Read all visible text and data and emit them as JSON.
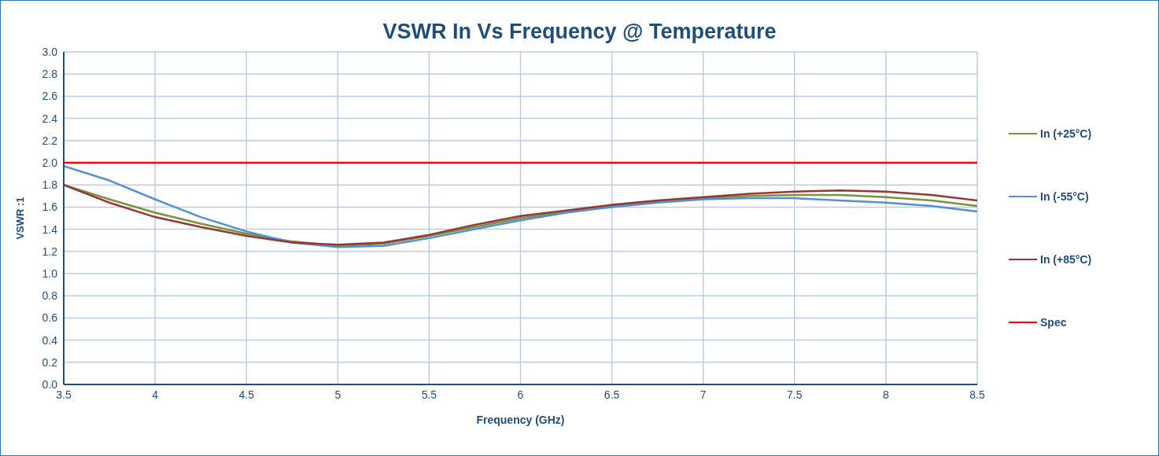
{
  "chart_data": {
    "type": "line",
    "title": "VSWR In Vs Frequency @ Temperature",
    "xlabel": "Frequency (GHz)",
    "ylabel": "VSWR :1",
    "x": [
      3.5,
      3.75,
      4,
      4.25,
      4.5,
      4.75,
      5,
      5.25,
      5.5,
      5.75,
      6,
      6.25,
      6.5,
      6.75,
      7,
      7.25,
      7.5,
      7.75,
      8,
      8.25,
      8.5
    ],
    "series": [
      {
        "name": "In (+25°C)",
        "color": "#77933c",
        "values": [
          1.8,
          1.67,
          1.55,
          1.45,
          1.36,
          1.29,
          1.25,
          1.27,
          1.34,
          1.42,
          1.5,
          1.56,
          1.61,
          1.65,
          1.68,
          1.7,
          1.71,
          1.71,
          1.69,
          1.66,
          1.61
        ]
      },
      {
        "name": "In (-55°C)",
        "color": "#558ed5",
        "values": [
          1.97,
          1.84,
          1.67,
          1.51,
          1.38,
          1.28,
          1.24,
          1.25,
          1.32,
          1.4,
          1.48,
          1.55,
          1.6,
          1.64,
          1.67,
          1.68,
          1.68,
          1.66,
          1.64,
          1.61,
          1.56
        ]
      },
      {
        "name": "In (+85°C)",
        "color": "#953735",
        "values": [
          1.8,
          1.64,
          1.51,
          1.42,
          1.34,
          1.28,
          1.26,
          1.28,
          1.35,
          1.44,
          1.52,
          1.57,
          1.62,
          1.66,
          1.69,
          1.72,
          1.74,
          1.75,
          1.74,
          1.71,
          1.66
        ]
      },
      {
        "name": "Spec",
        "color": "#ff0000",
        "x": [
          3.5,
          8.5
        ],
        "values": [
          2.0,
          2.0
        ]
      }
    ],
    "xlim": [
      3.5,
      8.5
    ],
    "xticks": [
      3.5,
      4,
      4.5,
      5,
      5.5,
      6,
      6.5,
      7,
      7.5,
      8,
      8.5
    ],
    "ylim": [
      0,
      3
    ],
    "yticks": [
      {
        "value": 0,
        "label": "0.0"
      },
      {
        "value": 0.2,
        "label": "0.2"
      },
      {
        "value": 0.4,
        "label": "0.4"
      },
      {
        "value": 0.6,
        "label": "0.6"
      },
      {
        "value": 0.8,
        "label": "0.8"
      },
      {
        "value": 1,
        "label": "1.0"
      },
      {
        "value": 1.2,
        "label": "1.2"
      },
      {
        "value": 1.4,
        "label": "1.4"
      },
      {
        "value": 1.6,
        "label": "1.6"
      },
      {
        "value": 1.8,
        "label": "1.8"
      },
      {
        "value": 2,
        "label": "2.0"
      },
      {
        "value": 2.2,
        "label": "2.2"
      },
      {
        "value": 2.4,
        "label": "2.4"
      },
      {
        "value": 2.6,
        "label": "2.6"
      },
      {
        "value": 2.8,
        "label": "2.8"
      },
      {
        "value": 3,
        "label": "3.0"
      }
    ],
    "grid": true,
    "legend": "right",
    "marker": "none",
    "line_style": "solid"
  }
}
